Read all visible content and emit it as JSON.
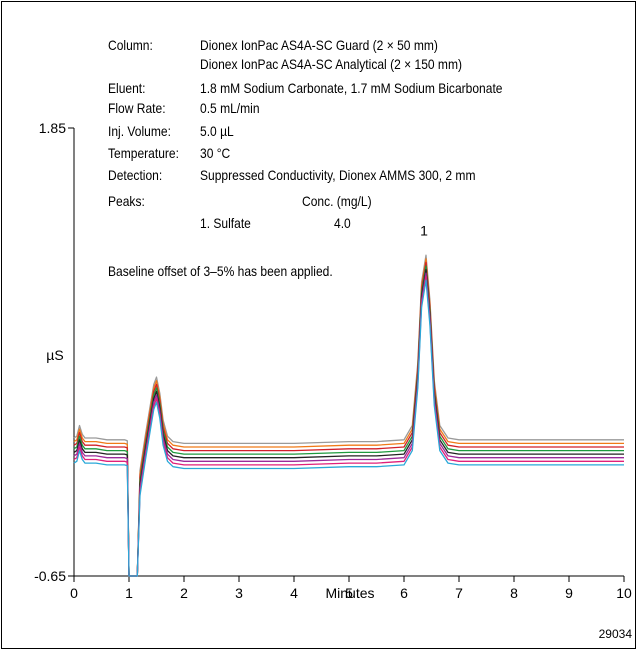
{
  "info": {
    "column_label": "Column:",
    "column_value_1": "Dionex IonPac AS4A-SC Guard (2 × 50 mm)",
    "column_value_2": "Dionex IonPac AS4A-SC Analytical (2 × 150 mm)",
    "eluent_label": "Eluent:",
    "eluent_value": "1.8 mM Sodium Carbonate, 1.7 mM Sodium Bicarbonate",
    "flow_label": "Flow Rate:",
    "flow_value": "0.5 mL/min",
    "inj_label": "Inj. Volume:",
    "inj_value": "5.0 µL",
    "temp_label": "Temperature:",
    "temp_value": "30 °C",
    "det_label": "Detection:",
    "det_value": "Suppressed Conductivity, Dionex AMMS 300, 2 mm",
    "peaks_label": "Peaks:",
    "conc_header": "Conc. (mg/L)",
    "peak1_name": "1. Sulfate",
    "peak1_conc": "4.0",
    "baseline_note": "Baseline offset of 3–5% has been applied.",
    "figure_id": "29034"
  },
  "chart_data": {
    "type": "line",
    "xlabel": "Minutes",
    "ylabel": "µS",
    "xlim": [
      0,
      10
    ],
    "ylim": [
      -0.65,
      1.85
    ],
    "xticks": [
      0,
      1,
      2,
      3,
      4,
      5,
      6,
      7,
      8,
      9,
      10
    ],
    "yticks": [
      -0.65,
      1.85
    ],
    "ytick_labels": [
      "-0.65",
      "1.85"
    ],
    "grid": false,
    "peak_labels": [
      {
        "text": "1",
        "x": 6.4,
        "y": 1.25
      }
    ],
    "base_profile": {
      "x": [
        0,
        0.05,
        0.1,
        0.15,
        0.2,
        0.4,
        0.6,
        0.8,
        0.92,
        0.97,
        1.0,
        1.15,
        1.2,
        1.3,
        1.38,
        1.45,
        1.5,
        1.56,
        1.62,
        1.7,
        1.8,
        2.0,
        2.5,
        3.0,
        3.5,
        4.0,
        5.0,
        5.5,
        6.0,
        6.15,
        6.25,
        6.32,
        6.4,
        6.47,
        6.55,
        6.65,
        6.8,
        7.0,
        8.0,
        9.0,
        10.0
      ],
      "y": [
        0.03,
        0.04,
        0.1,
        0.05,
        0.03,
        0.03,
        0.02,
        0.02,
        0.02,
        0.015,
        -0.65,
        -0.65,
        -0.15,
        0.05,
        0.2,
        0.33,
        0.37,
        0.28,
        0.13,
        0.04,
        0.01,
        0.0,
        0.0,
        0.0,
        0.0,
        0.0,
        0.01,
        0.01,
        0.02,
        0.1,
        0.45,
        0.9,
        1.05,
        0.8,
        0.35,
        0.1,
        0.03,
        0.02,
        0.02,
        0.02,
        0.02
      ]
    },
    "series": [
      {
        "color": "#9a9a9a",
        "offset": 0.09
      },
      {
        "color": "#f07a18",
        "offset": 0.07
      },
      {
        "color": "#d0202a",
        "offset": 0.05
      },
      {
        "color": "#1e9a3e",
        "offset": 0.03
      },
      {
        "color": "#222222",
        "offset": 0.01
      },
      {
        "color": "#9a2a9a",
        "offset": -0.01
      },
      {
        "color": "#e0207a",
        "offset": -0.03
      },
      {
        "color": "#2aa8d8",
        "offset": -0.05
      }
    ]
  }
}
